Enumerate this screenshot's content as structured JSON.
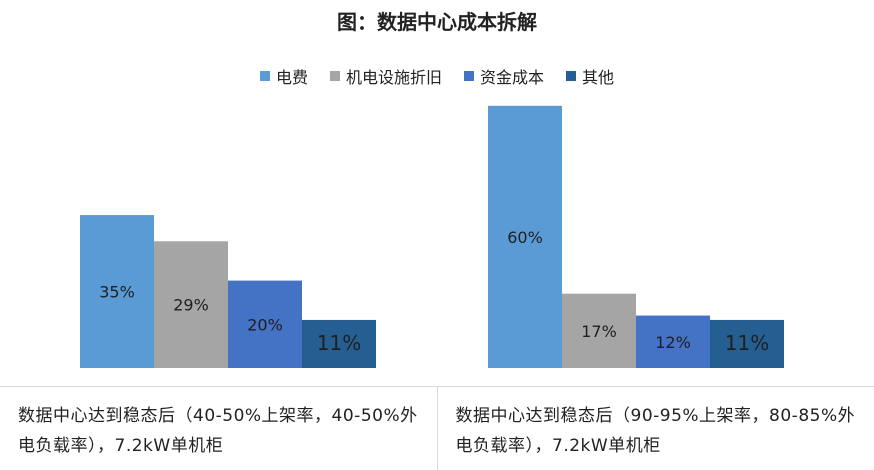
{
  "chart_data": {
    "type": "bar",
    "title": "图：数据中心成本拆解",
    "legend": {
      "position": "top",
      "items": [
        {
          "label": "电费",
          "color": "#5B9BD5"
        },
        {
          "label": "机电设施折旧",
          "color": "#A5A5A5"
        },
        {
          "label": "资金成本",
          "color": "#4472C4"
        },
        {
          "label": "其他",
          "color": "#255E91"
        }
      ]
    },
    "ylim": [
      0,
      65
    ],
    "grid": false,
    "panels": [
      {
        "caption": "数据中心达到稳态后（40-50%上架率，40-50%外电负载率），7.2kW单机柜",
        "series": [
          {
            "name": "电费",
            "value": 35,
            "label": "35%"
          },
          {
            "name": "机电设施折旧",
            "value": 29,
            "label": "29%"
          },
          {
            "name": "资金成本",
            "value": 20,
            "label": "20%"
          },
          {
            "name": "其他",
            "value": 11,
            "label": "11%"
          }
        ]
      },
      {
        "caption": "数据中心达到稳态后（90-95%上架率，80-85%外电负载率），7.2kW单机柜",
        "series": [
          {
            "name": "电费",
            "value": 60,
            "label": "60%"
          },
          {
            "name": "机电设施折旧",
            "value": 17,
            "label": "17%"
          },
          {
            "name": "资金成本",
            "value": 12,
            "label": "12%"
          },
          {
            "name": "其他",
            "value": 11,
            "label": "11%"
          }
        ]
      }
    ]
  }
}
